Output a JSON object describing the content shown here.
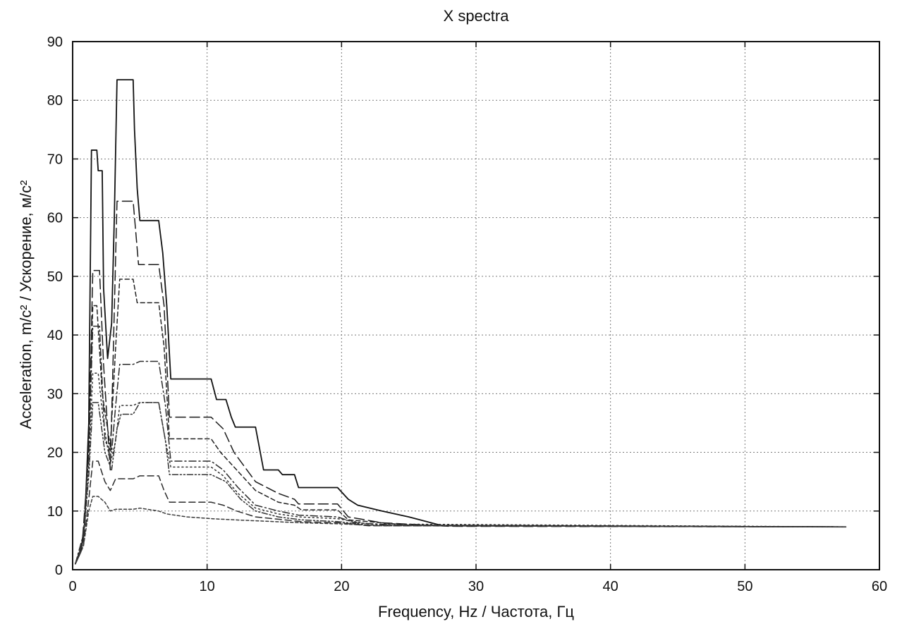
{
  "chart_data": {
    "type": "line",
    "title": "X spectra",
    "xlabel": "Frequency, Hz  /  Частота, Гц",
    "ylabel": "Acceleration, m/c²  /  Ускорение, м/с²",
    "xlim": [
      0,
      60
    ],
    "ylim": [
      0,
      90
    ],
    "xticks": [
      0,
      10,
      20,
      30,
      40,
      50,
      60
    ],
    "yticks": [
      0,
      10,
      20,
      30,
      40,
      50,
      60,
      70,
      80,
      90
    ],
    "grid": true,
    "legend": "none",
    "series": [
      {
        "style": "solid",
        "color": "#111111",
        "points": [
          [
            0.2,
            1
          ],
          [
            0.6,
            3
          ],
          [
            0.9,
            8
          ],
          [
            1.2,
            25
          ],
          [
            1.4,
            71.5
          ],
          [
            1.8,
            71.5
          ],
          [
            1.9,
            68
          ],
          [
            2.2,
            68
          ],
          [
            2.3,
            48
          ],
          [
            2.6,
            36
          ],
          [
            2.9,
            42
          ],
          [
            3.1,
            60
          ],
          [
            3.3,
            83.5
          ],
          [
            4.5,
            83.5
          ],
          [
            4.6,
            75
          ],
          [
            4.8,
            65
          ],
          [
            5.0,
            59.5
          ],
          [
            6.4,
            59.5
          ],
          [
            6.7,
            54
          ],
          [
            7.0,
            45
          ],
          [
            7.3,
            32.5
          ],
          [
            10.3,
            32.5
          ],
          [
            10.7,
            29
          ],
          [
            11.4,
            29
          ],
          [
            11.8,
            26
          ],
          [
            12.1,
            24.3
          ],
          [
            13.6,
            24.3
          ],
          [
            14.2,
            17
          ],
          [
            15.3,
            17
          ],
          [
            15.6,
            16.2
          ],
          [
            16.5,
            16.2
          ],
          [
            16.8,
            14
          ],
          [
            19.7,
            14
          ],
          [
            20.5,
            12
          ],
          [
            21.2,
            11
          ],
          [
            23.0,
            10
          ],
          [
            25.0,
            9
          ],
          [
            27.5,
            7.5
          ],
          [
            57.5,
            7.3
          ]
        ]
      },
      {
        "style": "long-dash",
        "color": "#1a1a1a",
        "points": [
          [
            0.2,
            1
          ],
          [
            0.7,
            4
          ],
          [
            1.2,
            20
          ],
          [
            1.5,
            51
          ],
          [
            2.0,
            51
          ],
          [
            2.3,
            35
          ],
          [
            2.8,
            17
          ],
          [
            3.0,
            35
          ],
          [
            3.3,
            62.8
          ],
          [
            4.5,
            62.8
          ],
          [
            4.9,
            52
          ],
          [
            6.4,
            52
          ],
          [
            6.8,
            45
          ],
          [
            7.2,
            26
          ],
          [
            10.3,
            26
          ],
          [
            11.2,
            24
          ],
          [
            12.0,
            20
          ],
          [
            13.6,
            15
          ],
          [
            15.3,
            13
          ],
          [
            16.5,
            12
          ],
          [
            16.8,
            11.2
          ],
          [
            19.7,
            11.2
          ],
          [
            20.5,
            9
          ],
          [
            23.0,
            8
          ],
          [
            28.0,
            7.4
          ],
          [
            57.5,
            7.3
          ]
        ]
      },
      {
        "style": "short-dash",
        "color": "#222222",
        "points": [
          [
            0.2,
            1
          ],
          [
            0.8,
            5
          ],
          [
            1.2,
            22
          ],
          [
            1.5,
            45
          ],
          [
            1.8,
            45
          ],
          [
            2.2,
            30
          ],
          [
            2.8,
            21
          ],
          [
            3.2,
            38
          ],
          [
            3.5,
            49.5
          ],
          [
            4.5,
            49.5
          ],
          [
            4.8,
            45.5
          ],
          [
            6.4,
            45.5
          ],
          [
            6.8,
            38
          ],
          [
            7.2,
            22.3
          ],
          [
            10.3,
            22.3
          ],
          [
            11.0,
            20
          ],
          [
            12.2,
            17
          ],
          [
            13.6,
            13.5
          ],
          [
            15.3,
            11.5
          ],
          [
            16.5,
            11
          ],
          [
            17.0,
            10.2
          ],
          [
            19.7,
            10.2
          ],
          [
            20.5,
            8.5
          ],
          [
            25.0,
            7.6
          ],
          [
            57.5,
            7.3
          ]
        ]
      },
      {
        "style": "dash-dot",
        "color": "#2a2a2a",
        "points": [
          [
            0.2,
            1
          ],
          [
            0.8,
            6
          ],
          [
            1.2,
            20
          ],
          [
            1.5,
            41.5
          ],
          [
            2.0,
            41.5
          ],
          [
            2.4,
            22
          ],
          [
            2.9,
            20
          ],
          [
            3.2,
            28
          ],
          [
            3.5,
            35
          ],
          [
            4.5,
            35
          ],
          [
            5.0,
            35.5
          ],
          [
            6.4,
            35.5
          ],
          [
            6.9,
            28
          ],
          [
            7.3,
            18.5
          ],
          [
            10.3,
            18.5
          ],
          [
            11.2,
            17
          ],
          [
            12.3,
            14
          ],
          [
            13.6,
            11
          ],
          [
            15.3,
            10
          ],
          [
            16.8,
            9.3
          ],
          [
            19.7,
            9
          ],
          [
            21.0,
            8
          ],
          [
            24.0,
            7.6
          ],
          [
            57.5,
            7.3
          ]
        ]
      },
      {
        "style": "dotted",
        "color": "#333333",
        "points": [
          [
            0.2,
            1
          ],
          [
            0.8,
            5
          ],
          [
            1.2,
            18
          ],
          [
            1.5,
            33.5
          ],
          [
            1.9,
            33.5
          ],
          [
            2.3,
            25
          ],
          [
            2.8,
            18
          ],
          [
            3.2,
            22
          ],
          [
            3.5,
            28
          ],
          [
            4.5,
            28
          ],
          [
            5.0,
            28.5
          ],
          [
            6.4,
            28.5
          ],
          [
            6.9,
            22
          ],
          [
            7.3,
            17.5
          ],
          [
            10.3,
            17.5
          ],
          [
            11.2,
            16
          ],
          [
            12.3,
            13
          ],
          [
            13.6,
            10.5
          ],
          [
            15.3,
            9.5
          ],
          [
            16.8,
            9
          ],
          [
            19.7,
            8.7
          ],
          [
            22.0,
            7.8
          ],
          [
            57.5,
            7.3
          ]
        ]
      },
      {
        "style": "dash-dot-dot",
        "color": "#333333",
        "points": [
          [
            0.2,
            1
          ],
          [
            0.8,
            5
          ],
          [
            1.2,
            16
          ],
          [
            1.5,
            28.5
          ],
          [
            1.9,
            28.5
          ],
          [
            2.4,
            20
          ],
          [
            2.9,
            17
          ],
          [
            3.3,
            24
          ],
          [
            3.6,
            26.5
          ],
          [
            4.5,
            26.5
          ],
          [
            5.0,
            28.5
          ],
          [
            6.4,
            28.5
          ],
          [
            6.9,
            22
          ],
          [
            7.2,
            16.2
          ],
          [
            10.3,
            16.2
          ],
          [
            11.4,
            15
          ],
          [
            12.5,
            12
          ],
          [
            13.6,
            10
          ],
          [
            15.3,
            9
          ],
          [
            17.0,
            8.5
          ],
          [
            19.7,
            8.2
          ],
          [
            22.0,
            7.6
          ],
          [
            57.5,
            7.3
          ]
        ]
      },
      {
        "style": "medium-dash",
        "color": "#2b2b2b",
        "points": [
          [
            0.2,
            1
          ],
          [
            0.8,
            4
          ],
          [
            1.2,
            12
          ],
          [
            1.5,
            18.5
          ],
          [
            1.9,
            18.5
          ],
          [
            2.4,
            15
          ],
          [
            2.8,
            13.5
          ],
          [
            3.2,
            15.5
          ],
          [
            4.5,
            15.5
          ],
          [
            5.0,
            16
          ],
          [
            6.4,
            16
          ],
          [
            6.8,
            13.5
          ],
          [
            7.2,
            11.5
          ],
          [
            10.3,
            11.5
          ],
          [
            11.2,
            11
          ],
          [
            12.2,
            10
          ],
          [
            13.6,
            9
          ],
          [
            15.3,
            8.6
          ],
          [
            17.0,
            8.2
          ],
          [
            19.7,
            8
          ],
          [
            22.0,
            7.5
          ],
          [
            57.5,
            7.3
          ]
        ]
      },
      {
        "style": "fine-dash",
        "color": "#3a3a3a",
        "points": [
          [
            0.2,
            1
          ],
          [
            0.8,
            4
          ],
          [
            1.2,
            10
          ],
          [
            1.5,
            12.5
          ],
          [
            1.9,
            12.5
          ],
          [
            2.4,
            11.5
          ],
          [
            2.8,
            10
          ],
          [
            3.2,
            10.3
          ],
          [
            4.5,
            10.3
          ],
          [
            5.0,
            10.5
          ],
          [
            6.4,
            10
          ],
          [
            7.0,
            9.5
          ],
          [
            8.5,
            9
          ],
          [
            10.3,
            8.7
          ],
          [
            12.0,
            8.5
          ],
          [
            14.0,
            8.3
          ],
          [
            17.0,
            8
          ],
          [
            20.0,
            7.8
          ],
          [
            23.0,
            7.5
          ],
          [
            57.5,
            7.3
          ]
        ]
      }
    ]
  }
}
